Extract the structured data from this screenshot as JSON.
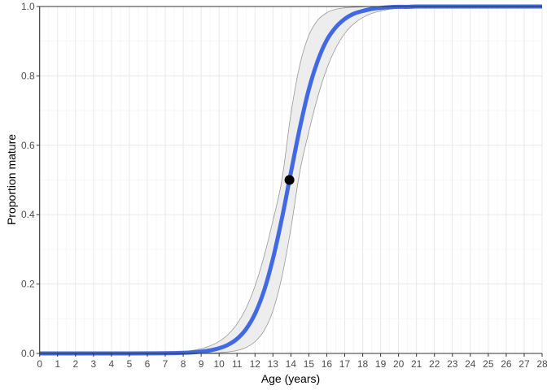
{
  "chart_data": {
    "type": "line",
    "title": "",
    "xlabel": "Age (years)",
    "ylabel": "Proportion mature",
    "xlim": [
      0,
      28
    ],
    "ylim": [
      0,
      1
    ],
    "x_ticks": [
      "0",
      "1",
      "2",
      "3",
      "4",
      "5",
      "6",
      "7",
      "8",
      "9",
      "10",
      "11",
      "12",
      "13",
      "14",
      "15",
      "16",
      "17",
      "18",
      "19",
      "20",
      "21",
      "22",
      "23",
      "24",
      "25",
      "26",
      "27",
      "28"
    ],
    "y_ticks": [
      "0.0",
      "0.2",
      "0.4",
      "0.6",
      "0.8",
      "1.0"
    ],
    "grid": true,
    "colors": {
      "fit": "#4169e1",
      "ribbon_fill": "#ebebeb",
      "ribbon_edge": "#999999",
      "point": "#000000"
    },
    "x": [
      0,
      1,
      2,
      3,
      4,
      5,
      6,
      7,
      7.5,
      8,
      8.5,
      9,
      9.5,
      10,
      10.5,
      11,
      11.5,
      12,
      12.5,
      13,
      13.5,
      14,
      14.5,
      15,
      15.5,
      16,
      16.5,
      17,
      17.5,
      18,
      18.5,
      19,
      19.5,
      20,
      20.5,
      21,
      22,
      23,
      24,
      25,
      26,
      27,
      28
    ],
    "fit": [
      0,
      0,
      0,
      0,
      0,
      0.0001,
      0.0002,
      0.0006,
      0.001,
      0.0018,
      0.003,
      0.0052,
      0.0088,
      0.0149,
      0.025,
      0.042,
      0.07,
      0.114,
      0.18,
      0.273,
      0.389,
      0.521,
      0.65,
      0.761,
      0.844,
      0.903,
      0.94,
      0.964,
      0.979,
      0.987,
      0.993,
      0.996,
      0.998,
      0.999,
      0.999,
      1,
      1,
      1,
      1,
      1,
      1,
      1,
      1
    ],
    "ci_upper": [
      0,
      0,
      0,
      0,
      0,
      0.0003,
      0.0008,
      0.0021,
      0.0033,
      0.0054,
      0.0086,
      0.0137,
      0.0219,
      0.0347,
      0.0547,
      0.085,
      0.13,
      0.194,
      0.279,
      0.383,
      0.5,
      0.69,
      0.832,
      0.917,
      0.961,
      0.982,
      0.992,
      0.996,
      0.998,
      0.999,
      1,
      1,
      1,
      1,
      1,
      1,
      1,
      1,
      1,
      1,
      1,
      1,
      1
    ],
    "ci_lower": [
      0,
      0,
      0,
      0,
      0,
      0,
      0,
      0,
      0,
      0,
      0,
      0.0005,
      0.001,
      0.0021,
      0.0042,
      0.0085,
      0.017,
      0.034,
      0.065,
      0.123,
      0.221,
      0.36,
      0.524,
      0.639,
      0.74,
      0.821,
      0.88,
      0.922,
      0.95,
      0.968,
      0.98,
      0.987,
      0.992,
      0.995,
      0.997,
      0.998,
      0.999,
      1,
      1,
      1,
      1,
      1,
      1
    ],
    "point": {
      "x": 13.92,
      "y": 0.5
    }
  }
}
